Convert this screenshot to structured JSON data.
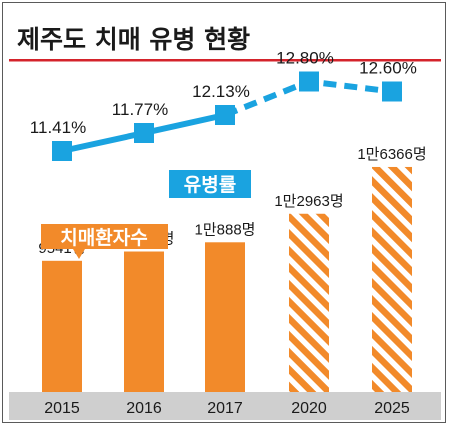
{
  "title": "제주도 치매 유병 현황",
  "colors": {
    "title_rule": "#d4232b",
    "line": "#1aa3e0",
    "bar": "#f28a2a",
    "year_strip": "#cfcfcf"
  },
  "chart_data": [
    {
      "type": "line",
      "series": [
        {
          "name": "유병률",
          "x": [
            "2015",
            "2016",
            "2017",
            "2020",
            "2025"
          ],
          "values": [
            11.41,
            11.77,
            12.13,
            12.8,
            12.6
          ],
          "labels": [
            "11.41%",
            "11.77%",
            "12.13%",
            "12.80%",
            "12.60%"
          ],
          "projected_from_index": 2
        }
      ]
    },
    {
      "type": "bar",
      "categories": [
        "2015",
        "2016",
        "2017",
        "2020",
        "2025"
      ],
      "series": [
        {
          "name": "치매환자수",
          "values": [
            9541,
            10217,
            10888,
            12963,
            16366
          ],
          "labels": [
            "9541명",
            "1만217명",
            "1만888명",
            "1만2963명",
            "1만6366명"
          ],
          "projected": [
            false,
            false,
            false,
            true,
            true
          ]
        }
      ]
    }
  ]
}
